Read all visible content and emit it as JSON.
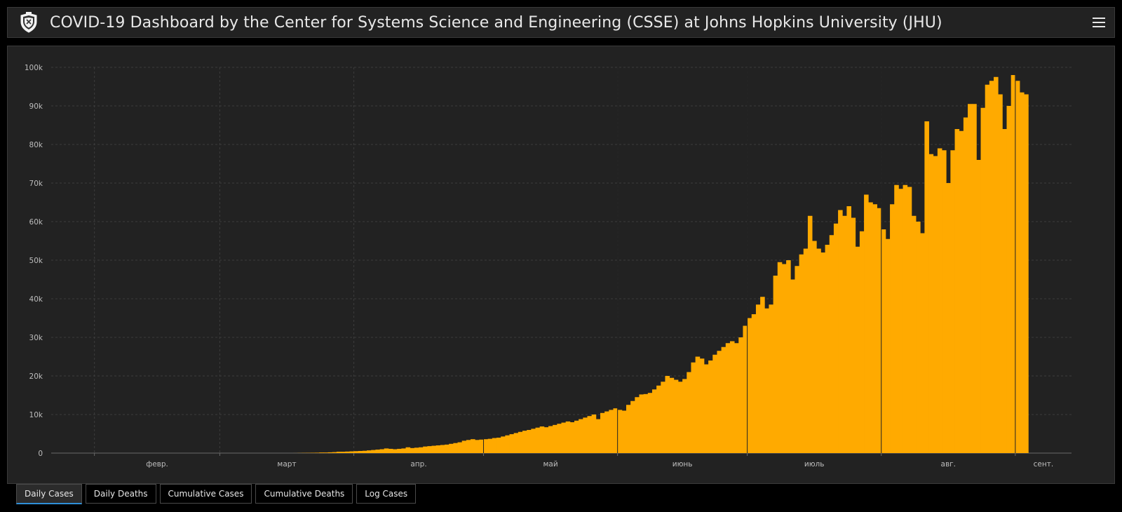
{
  "header": {
    "title": "COVID-19 Dashboard by the Center for Systems Science and Engineering (CSSE) at Johns Hopkins University (JHU)",
    "logo_icon": "jhu-shield-icon",
    "menu_icon": "hamburger-menu-icon"
  },
  "colors": {
    "background": "#000000",
    "panel": "#222222",
    "bar": "#ffaa00",
    "grid": "#3c3c3c",
    "active_tab_underline": "#2f8fd8"
  },
  "tabs": [
    {
      "label": "Daily Cases",
      "active": true
    },
    {
      "label": "Daily Deaths",
      "active": false
    },
    {
      "label": "Cumulative Cases",
      "active": false
    },
    {
      "label": "Cumulative Deaths",
      "active": false
    },
    {
      "label": "Log Cases",
      "active": false
    }
  ],
  "chart_data": {
    "type": "bar",
    "title": "",
    "xlabel": "",
    "ylabel": "",
    "ylim": [
      0,
      100000
    ],
    "yticks": [
      0,
      10000,
      20000,
      30000,
      40000,
      50000,
      60000,
      70000,
      80000,
      90000,
      100000
    ],
    "ytick_labels": [
      "0",
      "10k",
      "20k",
      "30k",
      "40k",
      "50k",
      "60k",
      "70k",
      "80k",
      "90k",
      "100k"
    ],
    "xlim": [
      "2020-01-22",
      "2020-09-14"
    ],
    "xtick_labels": [
      "февр.",
      "март",
      "апр.",
      "май",
      "июнь",
      "июль",
      "авг.",
      "сент."
    ],
    "grid": true,
    "bar_color": "#ffaa00",
    "series": [
      {
        "start_date": "2020-01-22",
        "values": [
          0,
          0,
          0,
          0,
          0,
          0,
          0,
          0,
          0,
          0,
          0,
          0,
          0,
          0,
          0,
          0,
          0,
          0,
          0,
          0,
          0,
          0,
          0,
          0,
          0,
          0,
          0,
          0,
          0,
          0,
          0,
          0,
          0,
          0,
          0,
          0,
          0,
          0,
          0,
          0,
          0,
          0,
          0,
          0,
          0,
          0,
          0,
          0,
          0,
          0,
          0,
          0,
          0,
          0,
          0,
          0,
          10,
          30,
          50,
          60,
          80,
          100,
          150,
          150,
          200,
          250,
          350,
          350,
          400,
          450,
          500,
          550,
          600,
          700,
          800,
          900,
          1000,
          1200,
          1100,
          1000,
          1100,
          1200,
          1500,
          1300,
          1400,
          1500,
          1700,
          1800,
          1900,
          2000,
          2100,
          2200,
          2400,
          2600,
          2800,
          3200,
          3400,
          3600,
          3400,
          3500,
          3600,
          3700,
          3900,
          4000,
          4300,
          4600,
          4900,
          5200,
          5500,
          5800,
          6000,
          6300,
          6600,
          6900,
          6700,
          7000,
          7300,
          7600,
          7900,
          8200,
          8000,
          8400,
          8800,
          9200,
          9600,
          10000,
          8800,
          10400,
          10800,
          11200,
          11600,
          11200,
          11000,
          12500,
          13500,
          14500,
          15200,
          15300,
          15600,
          16500,
          17500,
          18500,
          20000,
          19500,
          19000,
          18500,
          19200,
          21000,
          23500,
          25000,
          24500,
          23000,
          24000,
          25500,
          26500,
          27500,
          28500,
          29000,
          28500,
          30000,
          33000,
          35000,
          36000,
          38500,
          40500,
          37500,
          38500,
          46000,
          49500,
          49000,
          50000,
          45000,
          48500,
          51500,
          53000,
          61500,
          55000,
          53000,
          52000,
          54000,
          56500,
          59500,
          63000,
          61500,
          64000,
          61000,
          53500,
          57500,
          67000,
          65000,
          64500,
          63500,
          58000,
          55500,
          64500,
          69500,
          68500,
          69500,
          69000,
          61500,
          60000,
          57000,
          86000,
          77500,
          77000,
          79000,
          78500,
          70000,
          78500,
          84000,
          83500,
          87000,
          90500,
          90500,
          76000,
          89500,
          95500,
          96500,
          97500,
          93000,
          84000,
          90000,
          98000,
          96500,
          93500,
          93000
        ]
      }
    ]
  }
}
